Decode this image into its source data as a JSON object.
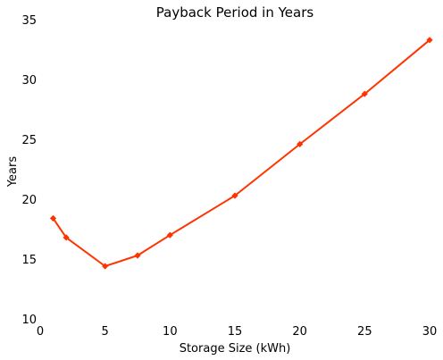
{
  "chart_data": {
    "type": "line",
    "title": "Payback Period in Years",
    "xlabel": "Storage Size (kWh)",
    "ylabel": "Years",
    "xlim": [
      0,
      30
    ],
    "ylim": [
      10,
      35
    ],
    "xticks": [
      0,
      5,
      10,
      15,
      20,
      25,
      30
    ],
    "yticks": [
      10,
      15,
      20,
      25,
      30,
      35
    ],
    "grid": false,
    "series": [
      {
        "color": "#ff3300",
        "marker": "diamond",
        "x": [
          1,
          2,
          5,
          7.5,
          10,
          15,
          20,
          25,
          30
        ],
        "y": [
          18.4,
          16.8,
          14.4,
          15.3,
          17.0,
          20.3,
          24.6,
          28.8,
          33.3
        ]
      }
    ]
  }
}
